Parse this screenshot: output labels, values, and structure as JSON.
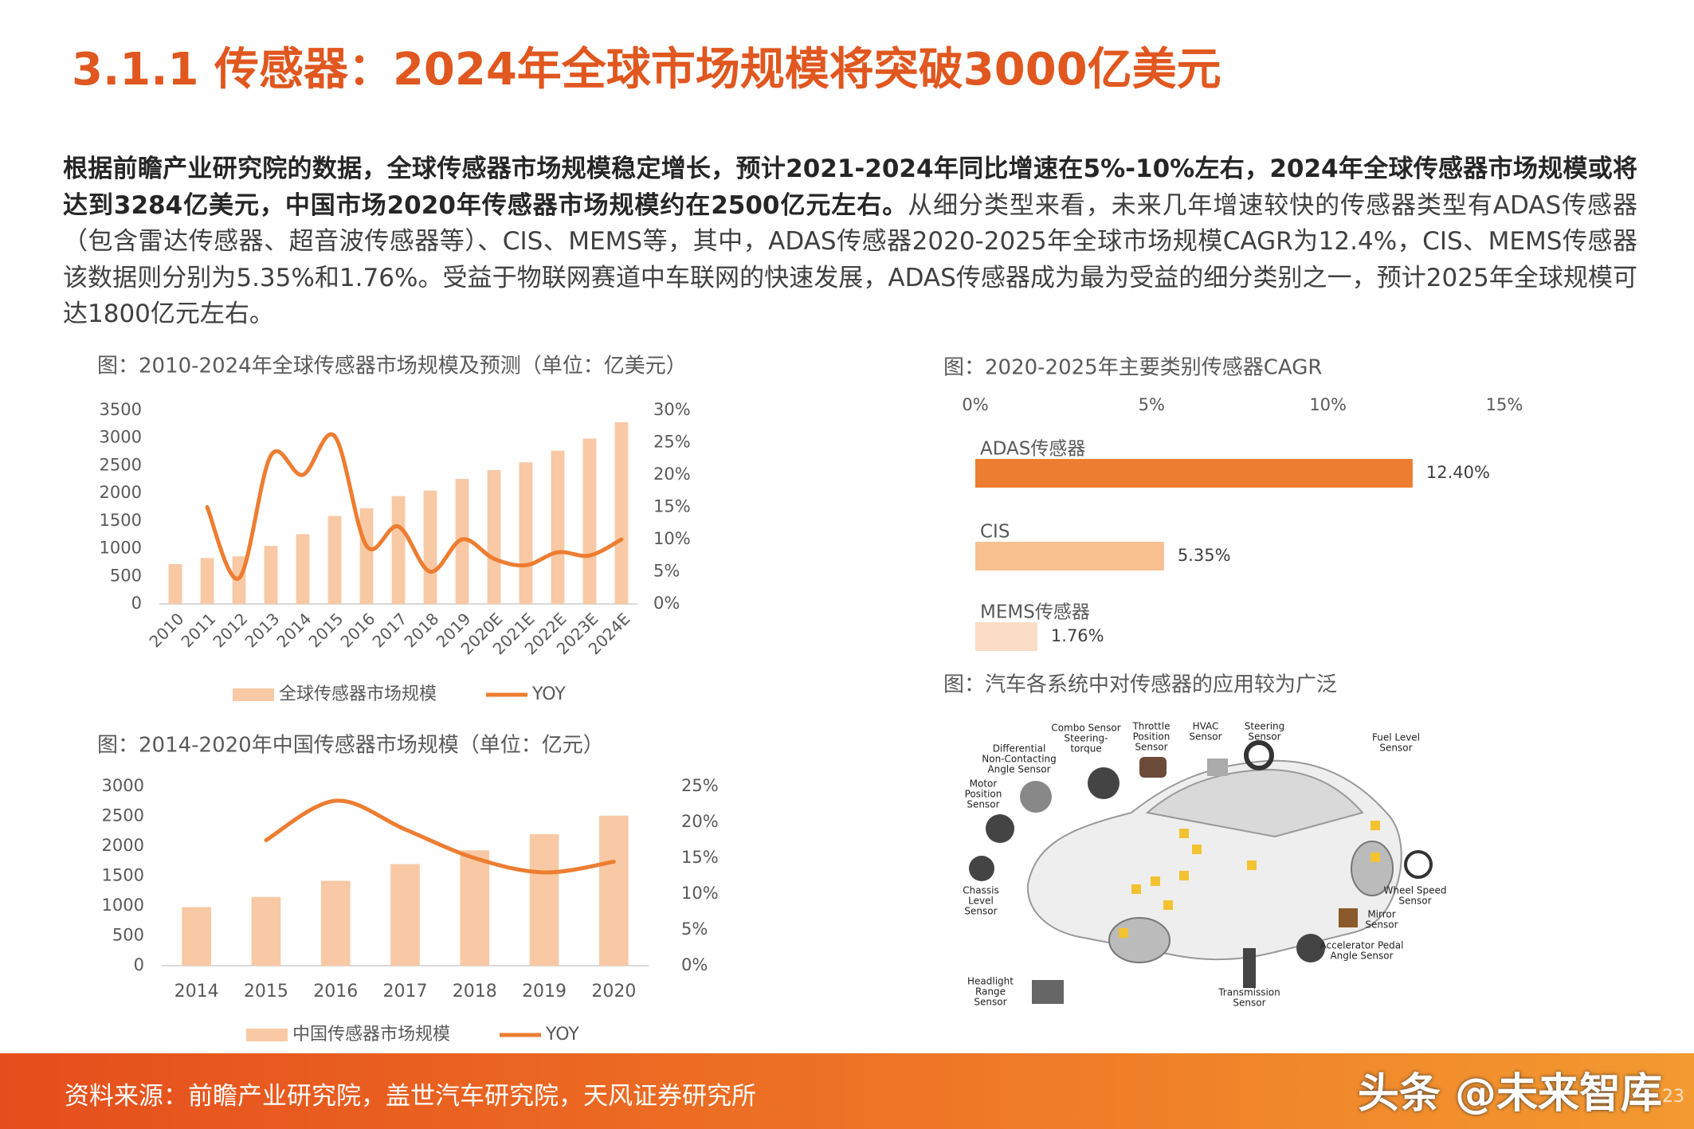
{
  "header": {
    "title": "3.1.1 传感器：2024年全球市场规模将突破3000亿美元"
  },
  "summary": {
    "bold": "根据前瞻产业研究院的数据，全球传感器市场规模稳定增长，预计2021-2024年同比增速在5%-10%左右，2024年全球传感器市场规模或将达到3284亿美元，中国市场2020年传感器市场规模约在2500亿元左右。",
    "text": "从细分类型来看，未来几年增速较快的传感器类型有ADAS传感器（包含雷达传感器、超音波传感器等）、CIS、MEMS等，其中，ADAS传感器2020-2025年全球市场规模CAGR为12.4%，CIS、MEMS传感器该数据则分别为5.35%和1.76%。受益于物联网赛道中车联网的快速发展，ADAS传感器成为最为受益的细分类别之一，预计2025年全球规模可达1800亿元左右。"
  },
  "chart_data": [
    {
      "type": "combo",
      "title": "图：2010-2024年全球传感器市场规模及预测（单位：亿美元）",
      "categories": [
        "2010",
        "2011",
        "2012",
        "2013",
        "2014",
        "2015",
        "2016",
        "2017",
        "2018",
        "2019",
        "2020E",
        "2021E",
        "2022E",
        "2023E",
        "2024E"
      ],
      "series": [
        {
          "name": "全球传感器市场规模",
          "type": "bar",
          "color": "#f8c9a4",
          "values": [
            720,
            830,
            860,
            1050,
            1260,
            1590,
            1730,
            1950,
            2050,
            2260,
            2420,
            2560,
            2770,
            2990,
            3284
          ]
        },
        {
          "name": "YOY",
          "type": "line",
          "axis": "y2",
          "color": "#ed7d31",
          "values": [
            null,
            15,
            4,
            23,
            20,
            26,
            9,
            12,
            5,
            10,
            7,
            6,
            8,
            7.5,
            10
          ]
        }
      ],
      "ylim": [
        0,
        3500
      ],
      "yticks": [
        0,
        500,
        1000,
        1500,
        2000,
        2500,
        3000,
        3500
      ],
      "y2lim": [
        0,
        30
      ],
      "y2ticks": [
        {
          "value": 0,
          "label": "0%"
        },
        {
          "value": 5,
          "label": "5%"
        },
        {
          "value": 10,
          "label": "10%"
        },
        {
          "value": 15,
          "label": "15%"
        },
        {
          "value": 20,
          "label": "20%"
        },
        {
          "value": 25,
          "label": "25%"
        },
        {
          "value": 30,
          "label": "30%"
        }
      ],
      "grid": false,
      "legend": "bottom"
    },
    {
      "type": "hbar",
      "title": "图：2020-2025年主要类别传感器CAGR",
      "categories": [
        "ADAS传感器",
        "CIS",
        "MEMS传感器"
      ],
      "values": [
        12.4,
        5.35,
        1.76
      ],
      "value_labels": [
        "12.40%",
        "5.35%",
        "1.76%"
      ],
      "colors": [
        "#ed7d31",
        "#f8bf8f",
        "#fbdcc5"
      ],
      "xlim": [
        0,
        15
      ],
      "xticks": [
        {
          "value": 0,
          "label": "0%"
        },
        {
          "value": 5,
          "label": "5%"
        },
        {
          "value": 10,
          "label": "10%"
        },
        {
          "value": 15,
          "label": "15%"
        }
      ],
      "grid": false
    },
    {
      "type": "combo",
      "title": "图：2014-2020年中国传感器市场规模（单位：亿元）",
      "categories": [
        "2014",
        "2015",
        "2016",
        "2017",
        "2018",
        "2019",
        "2020"
      ],
      "series": [
        {
          "name": "中国传感器市场规模",
          "type": "bar",
          "color": "#f8c9a4",
          "values": [
            980,
            1150,
            1420,
            1700,
            1930,
            2200,
            2510
          ]
        },
        {
          "name": "YOY",
          "type": "line",
          "axis": "y2",
          "color": "#ed7d31",
          "values": [
            null,
            17.5,
            23,
            19,
            15,
            13,
            14.5
          ]
        }
      ],
      "ylim": [
        0,
        3000
      ],
      "yticks": [
        0,
        500,
        1000,
        1500,
        2000,
        2500,
        3000
      ],
      "y2lim": [
        0,
        25
      ],
      "y2ticks": [
        {
          "value": 0,
          "label": "0%"
        },
        {
          "value": 5,
          "label": "5%"
        },
        {
          "value": 10,
          "label": "10%"
        },
        {
          "value": 15,
          "label": "15%"
        },
        {
          "value": 20,
          "label": "20%"
        },
        {
          "value": 25,
          "label": "25%"
        }
      ],
      "grid": false,
      "legend": "bottom"
    }
  ],
  "figure": {
    "caption": "图：汽车各系统中对传感器的应用较为广泛",
    "labels": [
      [
        "Combo Sensor",
        "Steering-",
        "torque"
      ],
      [
        "Throttle",
        "Position",
        "Sensor"
      ],
      [
        "HVAC",
        "Sensor"
      ],
      [
        "Steering",
        "Sensor"
      ],
      [
        "Differential",
        "Non-Contacting",
        "Angle Sensor"
      ],
      [
        "Motor",
        "Position",
        "Sensor"
      ],
      [
        "Fuel Level",
        "Sensor"
      ],
      [
        "Chassis",
        "Level",
        "Sensor"
      ],
      [
        "Wheel Speed",
        "Sensor"
      ],
      [
        "Mirror",
        "Sensor"
      ],
      [
        "Accelerator Pedal",
        "Angle Sensor"
      ],
      [
        "Headlight",
        "Range",
        "Sensor"
      ],
      [
        "Transmission",
        "Sensor"
      ]
    ]
  },
  "footer": {
    "source": "资料来源：前瞻产业研究院，盖世汽车研究院，天风证券研究所",
    "watermark": "头条 @未来智库",
    "page_number": "23"
  }
}
